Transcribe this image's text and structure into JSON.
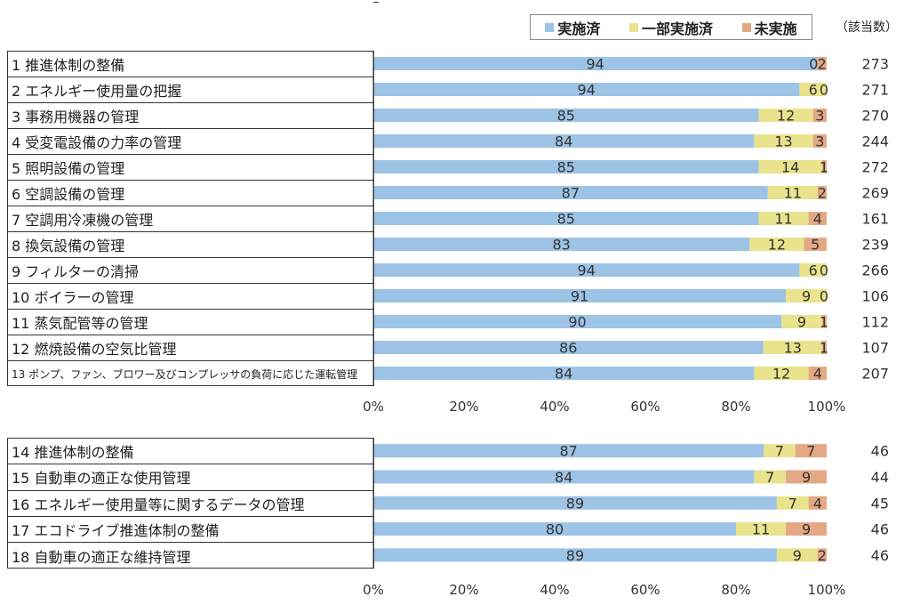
{
  "legend": {
    "items": [
      {
        "label": "実施済",
        "color": "#9DC3E6"
      },
      {
        "label": "一部実施済",
        "color": "#E8E38C"
      },
      {
        "label": "未実施",
        "color": "#E4A885"
      }
    ]
  },
  "count_header": "（該当数）",
  "chart_data": [
    {
      "type": "bar",
      "orientation": "horizontal",
      "stacked": "percent",
      "categories": [
        "1 推進体制の整備",
        "2 エネルギー使用量の把握",
        "3 事務用機器の管理",
        "4 受変電設備の力率の管理",
        "5 照明設備の管理",
        "6 空調設備の管理",
        "7 空調用冷凍機の管理",
        "8 換気設備の管理",
        "9 フィルターの清掃",
        "10 ボイラーの管理",
        "11 蒸気配管等の管理",
        "12 燃焼設備の空気比管理",
        "13 ポンプ、ファン、ブロワー及びコンプレッサの負荷に応じた運転管理"
      ],
      "series": [
        {
          "name": "実施済",
          "values": [
            94,
            94,
            85,
            84,
            85,
            87,
            85,
            83,
            94,
            91,
            90,
            86,
            84
          ]
        },
        {
          "name": "一部実施済",
          "values": [
            0,
            6,
            12,
            13,
            14,
            11,
            11,
            12,
            6,
            9,
            9,
            13,
            12
          ]
        },
        {
          "name": "未実施",
          "values": [
            2,
            0,
            3,
            3,
            1,
            2,
            4,
            5,
            0,
            0,
            1,
            1,
            4
          ]
        }
      ],
      "display_values": [
        [
          "94",
          "0",
          "2"
        ],
        [
          "94",
          "6",
          "0"
        ],
        [
          "85",
          "12",
          "3"
        ],
        [
          "84",
          "13",
          "3"
        ],
        [
          "85",
          "14",
          "1"
        ],
        [
          "87",
          "11",
          "2"
        ],
        [
          "85",
          "11",
          "4"
        ],
        [
          "83",
          "12",
          "5"
        ],
        [
          "94",
          "6",
          "0"
        ],
        [
          "91",
          "9",
          "0"
        ],
        [
          "90",
          "9",
          "1"
        ],
        [
          "86",
          "13",
          "1"
        ],
        [
          "84",
          "12",
          "4"
        ]
      ],
      "counts": [
        "273",
        "271",
        "270",
        "244",
        "272",
        "269",
        "161",
        "239",
        "266",
        "106",
        "112",
        "107",
        "207"
      ],
      "xlim": [
        0,
        100
      ],
      "x_ticks": [
        "0%",
        "20%",
        "40%",
        "60%",
        "80%",
        "100%"
      ]
    },
    {
      "type": "bar",
      "orientation": "horizontal",
      "stacked": "percent",
      "categories": [
        "14 推進体制の整備",
        "15 自動車の適正な使用管理",
        "16 エネルギー使用量等に関するデータの管理",
        "17 エコドライブ推進体制の整備",
        "18 自動車の適正な維持管理"
      ],
      "series": [
        {
          "name": "実施済",
          "values": [
            87,
            84,
            89,
            80,
            89
          ]
        },
        {
          "name": "一部実施済",
          "values": [
            7,
            7,
            7,
            11,
            9
          ]
        },
        {
          "name": "未実施",
          "values": [
            7,
            9,
            4,
            9,
            2
          ]
        }
      ],
      "display_values": [
        [
          "87",
          "7",
          "7"
        ],
        [
          "84",
          "7",
          "9"
        ],
        [
          "89",
          "7",
          "4"
        ],
        [
          "80",
          "11",
          "9"
        ],
        [
          "89",
          "9",
          "2"
        ]
      ],
      "counts": [
        "46",
        "44",
        "45",
        "46",
        "46"
      ],
      "xlim": [
        0,
        100
      ],
      "x_ticks": [
        "0%",
        "20%",
        "40%",
        "60%",
        "80%",
        "100%"
      ]
    }
  ]
}
